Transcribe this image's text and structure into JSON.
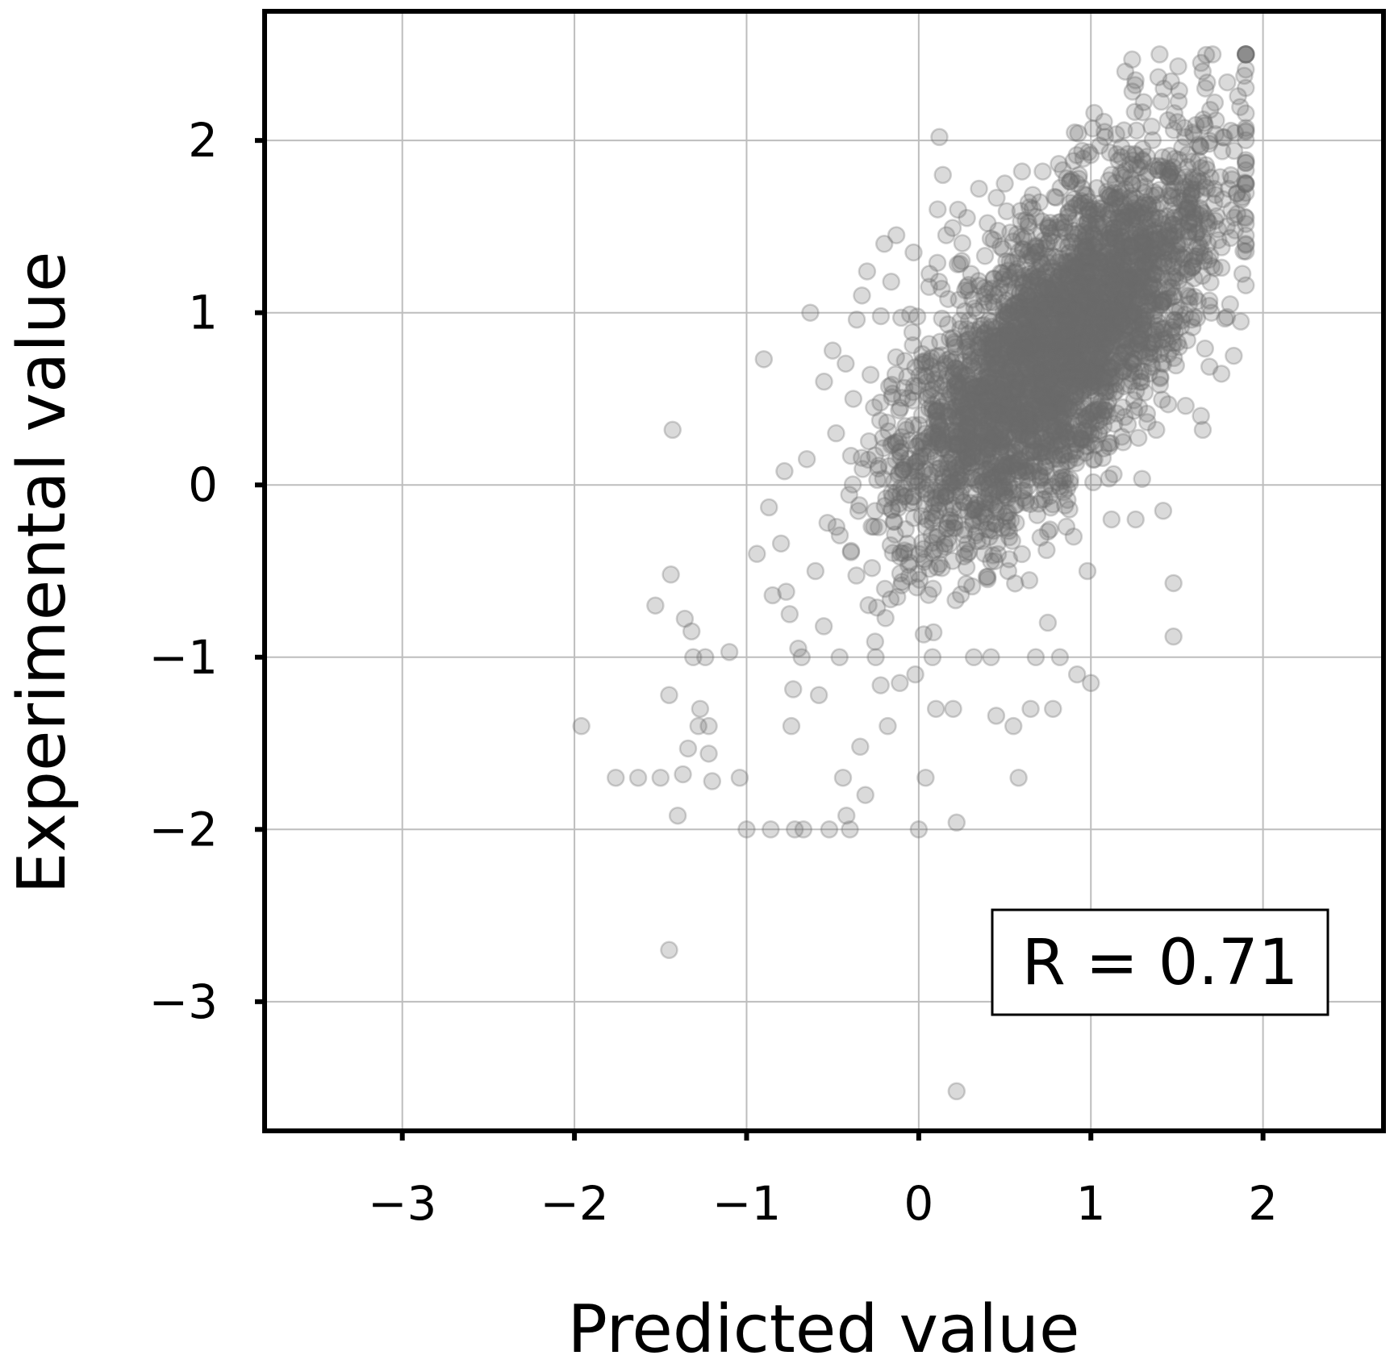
{
  "chart_data": {
    "type": "scatter",
    "title": "",
    "xlabel": "Predicted value",
    "ylabel": "Experimental value",
    "xlim": [
      -3.8,
      2.7
    ],
    "ylim": [
      -3.75,
      2.75
    ],
    "xticks": [
      -3,
      -2,
      -1,
      0,
      1,
      2
    ],
    "yticks": [
      -3,
      -2,
      -1,
      0,
      1,
      2
    ],
    "xtick_labels": [
      "−3",
      "−2",
      "−1",
      "0",
      "1",
      "2"
    ],
    "ytick_labels": [
      "−3",
      "−2",
      "−1",
      "0",
      "1",
      "2"
    ],
    "grid": true,
    "annotation": "R = 0.71",
    "annotation_position": "bottom-right",
    "point_color": "#6b6b6b",
    "point_opacity": 0.25,
    "approx_point_count": 3500,
    "correlation": 0.71,
    "dense_cluster": {
      "x_mean": 0.8,
      "y_mean": 0.8,
      "x_sd": 0.45,
      "y_sd": 0.55,
      "note_shown": false
    },
    "series": [
      {
        "points": [
          [
            -1.96,
            -1.4
          ],
          [
            -1.76,
            -1.7
          ],
          [
            -1.63,
            -1.7
          ],
          [
            -1.53,
            -0.7
          ],
          [
            -1.5,
            -1.7
          ],
          [
            -1.45,
            -2.7
          ],
          [
            -1.43,
            0.32
          ],
          [
            -1.44,
            -0.52
          ],
          [
            -1.45,
            -1.22
          ],
          [
            -1.4,
            -1.92
          ],
          [
            -1.37,
            -1.68
          ],
          [
            -1.34,
            -1.53
          ],
          [
            -1.32,
            -0.85
          ],
          [
            -1.31,
            -1.0
          ],
          [
            -1.28,
            -1.4
          ],
          [
            -1.27,
            -1.3
          ],
          [
            -1.24,
            -1.0
          ],
          [
            -1.22,
            -1.4
          ],
          [
            -1.22,
            -1.56
          ],
          [
            -1.2,
            -1.72
          ],
          [
            -1.1,
            -0.97
          ],
          [
            -1.04,
            -1.7
          ],
          [
            -1.0,
            -2.0
          ],
          [
            -0.94,
            -0.4
          ],
          [
            -0.9,
            0.73
          ],
          [
            -0.87,
            -0.13
          ],
          [
            -0.86,
            -2.0
          ],
          [
            -0.8,
            -0.34
          ],
          [
            -0.78,
            0.08
          ],
          [
            -0.77,
            -0.62
          ],
          [
            -0.75,
            -0.75
          ],
          [
            -0.74,
            -1.4
          ],
          [
            -0.72,
            -2.0
          ],
          [
            -0.7,
            -0.95
          ],
          [
            -0.68,
            -1.0
          ],
          [
            -0.67,
            -2.0
          ],
          [
            -0.65,
            0.15
          ],
          [
            -0.63,
            1.0
          ],
          [
            -0.6,
            -0.5
          ],
          [
            -0.58,
            -1.22
          ],
          [
            -0.55,
            0.6
          ],
          [
            -0.53,
            -0.22
          ],
          [
            -0.52,
            -2.0
          ],
          [
            -0.5,
            0.78
          ],
          [
            -0.48,
            0.3
          ],
          [
            -0.46,
            -1.0
          ],
          [
            -0.44,
            -1.7
          ],
          [
            -0.42,
            -1.92
          ],
          [
            -0.4,
            -2.0
          ],
          [
            -0.38,
            0.5
          ],
          [
            -0.36,
            0.96
          ],
          [
            -0.34,
            -1.52
          ],
          [
            -0.33,
            1.1
          ],
          [
            -0.31,
            -1.8
          ],
          [
            -0.3,
            1.24
          ],
          [
            -0.28,
            0.64
          ],
          [
            -0.26,
            0.45
          ],
          [
            -0.25,
            -1.0
          ],
          [
            -0.22,
            0.98
          ],
          [
            -0.2,
            1.4
          ],
          [
            -0.18,
            -1.4
          ],
          [
            -0.16,
            1.18
          ],
          [
            -0.13,
            1.45
          ],
          [
            -0.11,
            -1.15
          ],
          [
            -0.08,
            0.72
          ],
          [
            -0.05,
            0.99
          ],
          [
            -0.03,
            1.35
          ],
          [
            -0.02,
            -1.1
          ],
          [
            0.0,
            -2.0
          ],
          [
            0.02,
            0.76
          ],
          [
            0.04,
            -1.7
          ],
          [
            0.06,
            1.15
          ],
          [
            0.08,
            -1.0
          ],
          [
            0.1,
            -1.3
          ],
          [
            0.11,
            1.6
          ],
          [
            0.12,
            2.02
          ],
          [
            0.14,
            1.8
          ],
          [
            0.16,
            1.45
          ],
          [
            0.18,
            0.85
          ],
          [
            0.2,
            -1.3
          ],
          [
            0.22,
            -1.96
          ],
          [
            0.22,
            -3.52
          ],
          [
            0.25,
            1.3
          ],
          [
            0.28,
            1.55
          ],
          [
            0.32,
            -1.0
          ],
          [
            0.35,
            1.72
          ],
          [
            0.38,
            0.62
          ],
          [
            0.4,
            1.52
          ],
          [
            0.42,
            -1.0
          ],
          [
            0.45,
            -1.34
          ],
          [
            0.5,
            1.75
          ],
          [
            0.52,
            -0.5
          ],
          [
            0.55,
            -1.4
          ],
          [
            0.58,
            -1.7
          ],
          [
            0.6,
            1.82
          ],
          [
            0.62,
            0.1
          ],
          [
            0.65,
            -1.3
          ],
          [
            0.68,
            -1.0
          ],
          [
            0.72,
            1.82
          ],
          [
            0.75,
            -0.8
          ],
          [
            0.78,
            -1.3
          ],
          [
            0.82,
            -1.0
          ],
          [
            0.86,
            1.78
          ],
          [
            0.9,
            -0.3
          ],
          [
            0.92,
            -1.1
          ],
          [
            0.95,
            1.94
          ],
          [
            0.98,
            -0.5
          ],
          [
            1.0,
            -1.15
          ],
          [
            1.02,
            2.16
          ],
          [
            1.05,
            0.9
          ],
          [
            1.08,
            2.05
          ],
          [
            1.1,
            0.4
          ],
          [
            1.12,
            -0.2
          ],
          [
            1.15,
            1.92
          ],
          [
            1.18,
            0.28
          ],
          [
            1.2,
            2.4
          ],
          [
            1.24,
            2.47
          ],
          [
            1.26,
            -0.2
          ],
          [
            1.28,
            0.45
          ],
          [
            1.3,
            1.95
          ],
          [
            1.35,
            0.8
          ],
          [
            1.38,
            0.32
          ],
          [
            1.42,
            -0.15
          ],
          [
            1.45,
            0.76
          ],
          [
            1.48,
            -0.88
          ],
          [
            1.48,
            -0.57
          ],
          [
            1.52,
            1.56
          ],
          [
            1.56,
            0.84
          ],
          [
            1.6,
            1.2
          ],
          [
            1.64,
            2.45
          ],
          [
            1.65,
            0.32
          ],
          [
            1.7,
            1.0
          ],
          [
            1.72,
            2.22
          ],
          [
            1.76,
            1.38
          ],
          [
            1.8,
            1.72
          ],
          [
            1.83,
            0.75
          ],
          [
            1.88,
            1.67
          ],
          [
            1.5,
            1.4
          ],
          [
            1.36,
            1.5
          ],
          [
            1.22,
            1.3
          ]
        ]
      }
    ]
  }
}
